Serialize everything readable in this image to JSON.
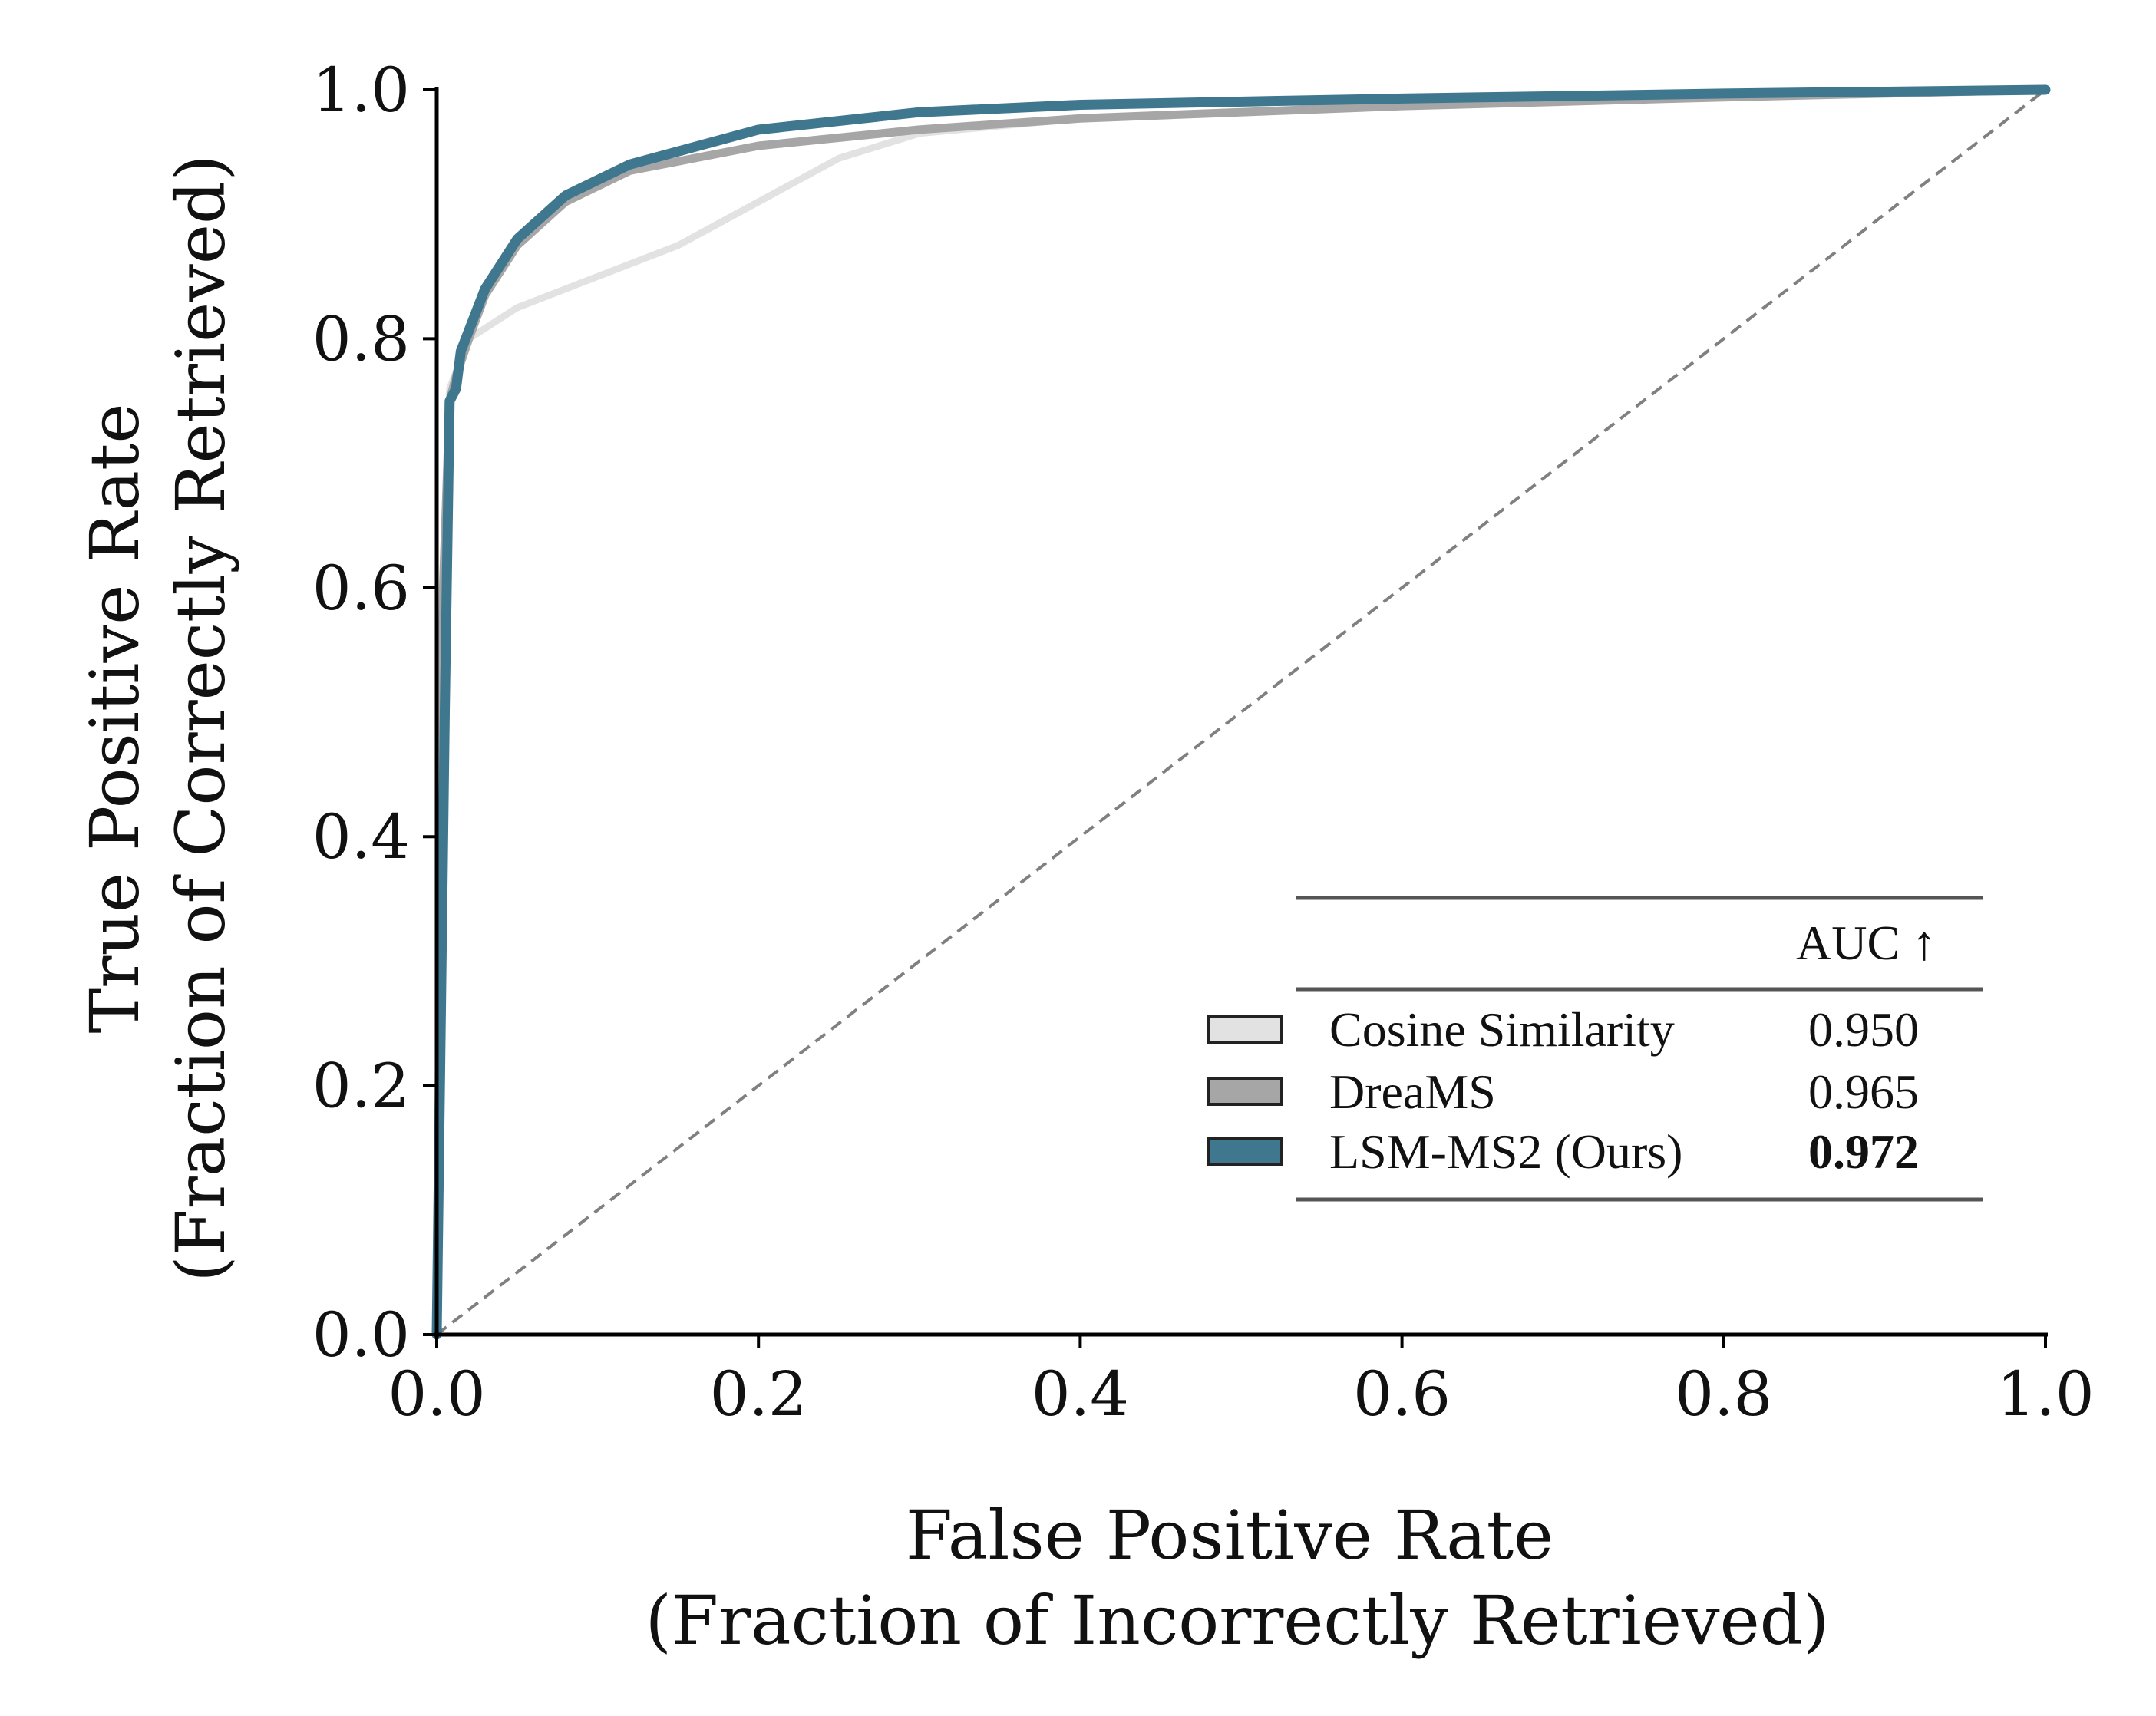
{
  "chart_data": {
    "type": "line",
    "title": "",
    "xlabel": [
      "False Positive Rate",
      "(Fraction of Incorrectly Retrieved)"
    ],
    "ylabel": [
      "True Positive Rate",
      "(Fraction of Correctly Retrieved)"
    ],
    "xlim": [
      0,
      1
    ],
    "ylim": [
      0,
      1
    ],
    "xticks": [
      "0.0",
      "0.2",
      "0.4",
      "0.6",
      "0.8",
      "1.0"
    ],
    "yticks": [
      "0.0",
      "0.2",
      "0.4",
      "0.6",
      "0.8",
      "1.0"
    ],
    "grid": false,
    "legend_placement": "lower-right",
    "legend_header": "AUC ↑",
    "diagonal": {
      "name": "random",
      "x": [
        0,
        1
      ],
      "y": [
        0,
        1
      ],
      "color": "#808080",
      "style": "dashed"
    },
    "series": [
      {
        "name": "Cosine Similarity",
        "auc": "0.950",
        "color": "#e2e2e2",
        "bold": false,
        "x": [
          0,
          0.005,
          0.008,
          0.02,
          0.05,
          0.1,
          0.15,
          0.2,
          0.25,
          0.3,
          0.4,
          0.6,
          0.8,
          1
        ],
        "y": [
          0,
          0.6,
          0.76,
          0.8,
          0.825,
          0.85,
          0.875,
          0.91,
          0.945,
          0.965,
          0.977,
          0.987,
          0.994,
          1
        ]
      },
      {
        "name": "DreaMS",
        "auc": "0.965",
        "color": "#a6a6a6",
        "bold": false,
        "x": [
          0,
          0.004,
          0.008,
          0.012,
          0.02,
          0.03,
          0.05,
          0.08,
          0.12,
          0.2,
          0.3,
          0.4,
          0.6,
          0.8,
          1
        ],
        "y": [
          0,
          0.6,
          0.75,
          0.77,
          0.8,
          0.835,
          0.875,
          0.91,
          0.935,
          0.955,
          0.968,
          0.977,
          0.987,
          0.994,
          1
        ]
      },
      {
        "name": "LSM-MS2 (Ours)",
        "auc": "0.972",
        "color": "#3f778f",
        "bold": true,
        "x": [
          0,
          0.005,
          0.008,
          0.012,
          0.015,
          0.03,
          0.05,
          0.08,
          0.12,
          0.2,
          0.3,
          0.4,
          0.6,
          0.8,
          1
        ],
        "y": [
          0,
          0.5,
          0.75,
          0.76,
          0.79,
          0.84,
          0.88,
          0.915,
          0.94,
          0.968,
          0.982,
          0.988,
          0.993,
          0.997,
          1
        ]
      }
    ]
  }
}
